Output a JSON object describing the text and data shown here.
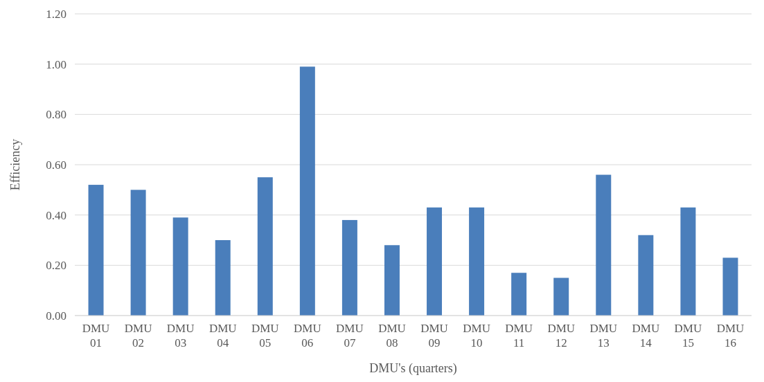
{
  "chart_data": {
    "type": "bar",
    "xlabel": "DMU's (quarters)",
    "ylabel": "Efficiency",
    "categories": [
      "DMU 01",
      "DMU 02",
      "DMU 03",
      "DMU 04",
      "DMU 05",
      "DMU 06",
      "DMU 07",
      "DMU 08",
      "DMU 09",
      "DMU 10",
      "DMU 11",
      "DMU 12",
      "DMU 13",
      "DMU 14",
      "DMU 15",
      "DMU 16"
    ],
    "values": [
      0.52,
      0.5,
      0.39,
      0.3,
      0.55,
      0.99,
      0.38,
      0.28,
      0.43,
      0.43,
      0.17,
      0.15,
      0.56,
      0.32,
      0.43,
      0.23
    ],
    "color": "#4a7ebb",
    "ylim": [
      0,
      1.2
    ],
    "yticks": [
      {
        "value": 0,
        "label": "0.00"
      },
      {
        "value": 0.2,
        "label": "0.20"
      },
      {
        "value": 0.4,
        "label": "0.40"
      },
      {
        "value": 0.6,
        "label": "0.60"
      },
      {
        "value": 0.8,
        "label": "0.80"
      },
      {
        "value": 1,
        "label": "1.00"
      },
      {
        "value": 1.2,
        "label": "1.20"
      }
    ],
    "grid": "y"
  }
}
